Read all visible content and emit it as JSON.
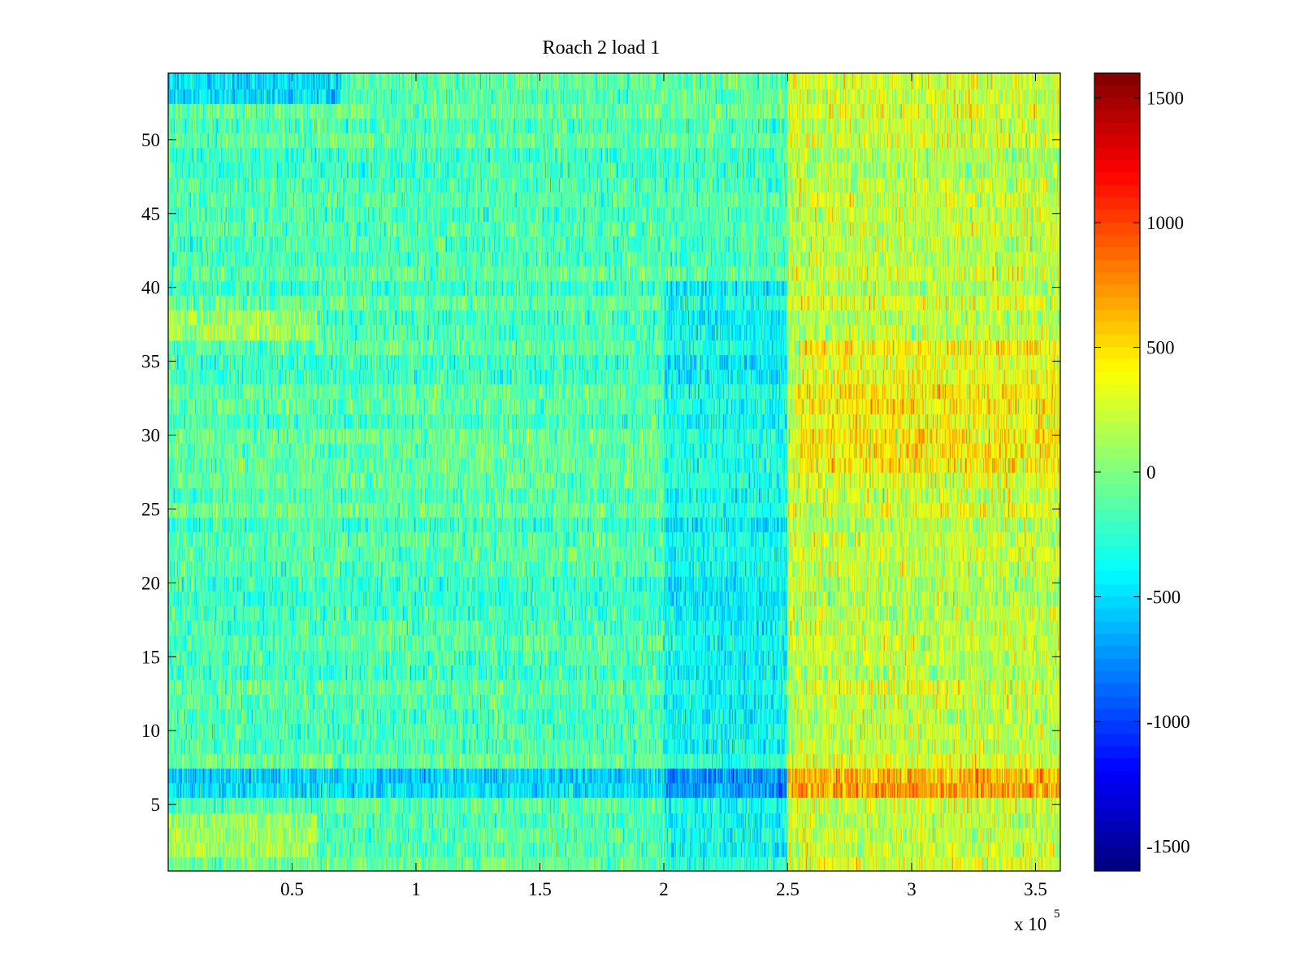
{
  "chart_data": {
    "type": "heatmap",
    "title": "Roach 2 load 1",
    "xlabel": "",
    "ylabel": "",
    "x_exponent_label": {
      "prefix": "x 10",
      "exponent": "5"
    },
    "x_range": [
      0,
      3.6
    ],
    "y_range": [
      0.5,
      54.5
    ],
    "x_ticks": [
      0.5,
      1,
      1.5,
      2,
      2.5,
      3,
      3.5
    ],
    "x_tick_labels": [
      "0.5",
      "1",
      "1.5",
      "2",
      "2.5",
      "3",
      "3.5"
    ],
    "y_ticks": [
      5,
      10,
      15,
      20,
      25,
      30,
      35,
      40,
      45,
      50
    ],
    "y_tick_labels": [
      "5",
      "10",
      "15",
      "20",
      "25",
      "30",
      "35",
      "40",
      "45",
      "50"
    ],
    "rows": 54,
    "colormap": "jet",
    "color_range": [
      -1600,
      1600
    ],
    "colorbar_ticks": [
      1500,
      1000,
      500,
      0,
      -500,
      -1000,
      -1500
    ],
    "colorbar_tick_labels": [
      "1500",
      "1000",
      "500",
      "0",
      "-500",
      "-1000",
      "-1500"
    ],
    "segments": [
      {
        "x_start": 0,
        "x_end": 2.5,
        "mean": -150,
        "spread": 260
      },
      {
        "x_start": 2.5,
        "x_end": 3.6,
        "mean": 220,
        "spread": 300
      }
    ],
    "row_offsets": [
      {
        "rows": [
          6,
          7
        ],
        "x_start": 0,
        "x_end": 2.5,
        "offset": -350
      },
      {
        "rows": [
          6,
          7
        ],
        "x_start": 2.5,
        "x_end": 3.6,
        "offset": 450
      },
      {
        "rows": [
          2,
          3,
          4
        ],
        "x_start": 0,
        "x_end": 0.6,
        "offset": 250
      },
      {
        "rows": [
          37,
          38
        ],
        "x_start": 0,
        "x_end": 0.6,
        "offset": 280
      },
      {
        "rows": [
          53,
          54
        ],
        "x_start": 0,
        "x_end": 0.7,
        "offset": -380
      },
      {
        "rows": [
          28,
          29,
          30,
          31,
          32,
          33,
          34,
          35,
          36
        ],
        "x_start": 2.55,
        "x_end": 3.6,
        "offset": 180
      },
      {
        "rows": [
          1,
          2,
          3,
          4,
          5,
          6,
          7,
          8,
          9,
          10,
          11,
          12,
          13,
          14,
          15,
          16,
          17,
          18,
          19,
          20,
          21,
          22,
          23,
          24,
          25,
          26,
          27,
          28,
          29,
          30,
          31,
          32,
          33,
          34,
          35,
          36,
          37,
          38,
          39,
          40
        ],
        "x_start": 2.0,
        "x_end": 2.5,
        "offset": -220
      }
    ],
    "columns_per_unit": 420
  }
}
